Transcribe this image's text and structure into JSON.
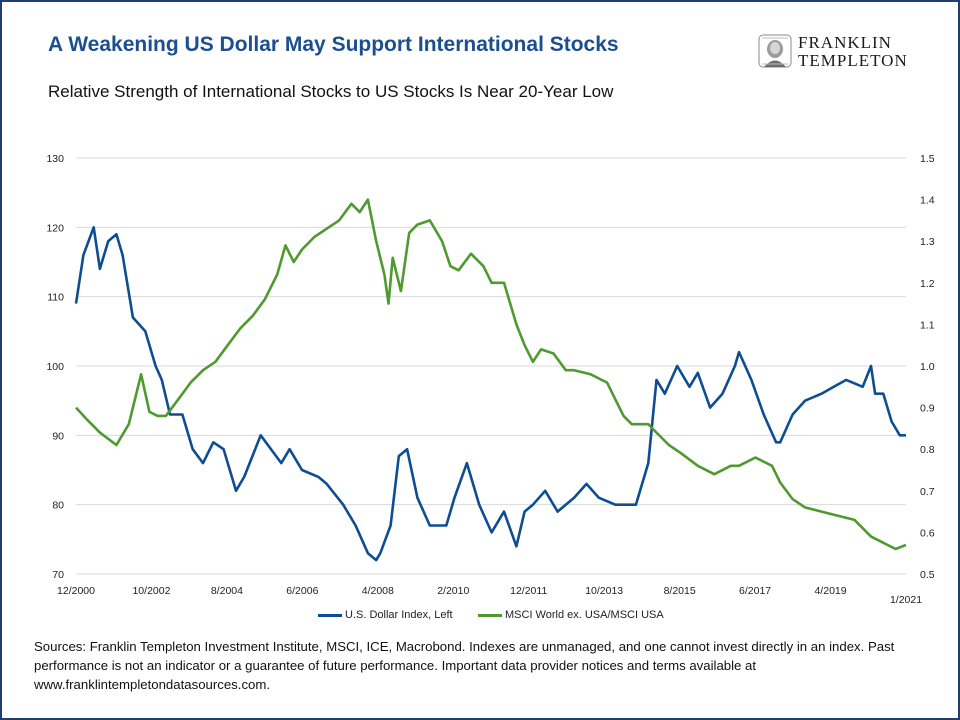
{
  "header": {
    "title": "A Weakening US Dollar May Support International Stocks",
    "subtitle": "Relative Strength of International Stocks to US Stocks Is Near 20-Year Low",
    "logo_line1": "FRANKLIN",
    "logo_line2": "TEMPLETON"
  },
  "footer": {
    "sources": "Sources: Franklin Templeton Investment Institute, MSCI, ICE, Macrobond. Indexes are unmanaged, and one cannot invest directly in an index. Past performance is not an indicator or a guarantee of future performance. Important data provider notices and terms available at www.franklintempletondatasources.com."
  },
  "colors": {
    "title": "#1b4f91",
    "dollar": "#0e4d92",
    "msci": "#4f9a2f",
    "grid": "#d9d9d9",
    "frame": "#1f3f73"
  },
  "chart_data": {
    "type": "line",
    "title": "Relative Strength of International Stocks to US Stocks Is Near 20-Year Low",
    "x_tick_labels": [
      "12/2000",
      "10/2002",
      "8/2004",
      "6/2006",
      "4/2008",
      "2/2010",
      "12/2011",
      "10/2013",
      "8/2015",
      "6/2017",
      "4/2019",
      "1/2021"
    ],
    "x_range": [
      2000.92,
      2021.05
    ],
    "y_left_ticks": [
      70,
      80,
      90,
      100,
      110,
      120,
      130
    ],
    "y_left_range": [
      70,
      130
    ],
    "y_right_ticks": [
      "0.5",
      "0.6",
      "0.7",
      "0.8",
      "0.9",
      "1.0",
      "1.1",
      "1.2",
      "1.3",
      "1.4",
      "1.5"
    ],
    "y_right_range": [
      0.5,
      1.5
    ],
    "grid": "horizontal",
    "legend_position": "bottom",
    "series": [
      {
        "name": "U.S. Dollar Index, Left",
        "axis": "left",
        "x": [
          2000.92,
          2001.1,
          2001.35,
          2001.5,
          2001.7,
          2001.9,
          2002.05,
          2002.3,
          2002.6,
          2002.85,
          2003.0,
          2003.2,
          2003.5,
          2003.75,
          2004.0,
          2004.25,
          2004.5,
          2004.8,
          2005.0,
          2005.4,
          2005.9,
          2006.1,
          2006.4,
          2006.8,
          2007.0,
          2007.4,
          2007.7,
          2008.0,
          2008.2,
          2008.3,
          2008.55,
          2008.75,
          2008.95,
          2009.2,
          2009.5,
          2009.9,
          2010.1,
          2010.4,
          2010.7,
          2011.0,
          2011.3,
          2011.6,
          2011.8,
          2012.0,
          2012.3,
          2012.6,
          2013.0,
          2013.3,
          2013.6,
          2014.0,
          2014.5,
          2014.8,
          2015.0,
          2015.2,
          2015.5,
          2015.8,
          2016.0,
          2016.3,
          2016.6,
          2016.9,
          2017.0,
          2017.3,
          2017.6,
          2017.9,
          2018.0,
          2018.3,
          2018.6,
          2019.0,
          2019.3,
          2019.6,
          2020.0,
          2020.2,
          2020.3,
          2020.5,
          2020.7,
          2020.9,
          2021.05
        ],
        "y": [
          109,
          116,
          120,
          114,
          118,
          119,
          116,
          107,
          105,
          100,
          98,
          93,
          93,
          88,
          86,
          89,
          88,
          82,
          84,
          90,
          86,
          88,
          85,
          84,
          83,
          80,
          77,
          73,
          72,
          73,
          77,
          87,
          88,
          81,
          77,
          77,
          81,
          86,
          80,
          76,
          79,
          74,
          79,
          80,
          82,
          79,
          81,
          83,
          81,
          80,
          80,
          86,
          98,
          96,
          100,
          97,
          99,
          94,
          96,
          100,
          102,
          98,
          93,
          89,
          89,
          93,
          95,
          96,
          97,
          98,
          97,
          100,
          96,
          96,
          92,
          90,
          90
        ]
      },
      {
        "name": "MSCI World ex. USA/MSCI USA",
        "axis": "right",
        "x": [
          2000.92,
          2001.2,
          2001.5,
          2001.9,
          2002.2,
          2002.5,
          2002.7,
          2002.9,
          2003.1,
          2003.4,
          2003.7,
          2004.0,
          2004.3,
          2004.6,
          2004.9,
          2005.2,
          2005.5,
          2005.8,
          2006.0,
          2006.2,
          2006.4,
          2006.7,
          2007.0,
          2007.3,
          2007.6,
          2007.8,
          2008.0,
          2008.2,
          2008.4,
          2008.5,
          2008.6,
          2008.8,
          2009.0,
          2009.2,
          2009.5,
          2009.8,
          2010.0,
          2010.2,
          2010.5,
          2010.8,
          2011.0,
          2011.3,
          2011.6,
          2011.8,
          2012.0,
          2012.2,
          2012.5,
          2012.8,
          2013.0,
          2013.4,
          2013.8,
          2014.0,
          2014.2,
          2014.4,
          2014.6,
          2014.8,
          2015.0,
          2015.3,
          2015.6,
          2016.0,
          2016.4,
          2016.8,
          2017.0,
          2017.4,
          2017.8,
          2018.0,
          2018.3,
          2018.6,
          2019.0,
          2019.4,
          2019.8,
          2020.0,
          2020.2,
          2020.4,
          2020.6,
          2020.8,
          2021.05
        ],
        "y": [
          0.9,
          0.87,
          0.84,
          0.81,
          0.86,
          0.98,
          0.89,
          0.88,
          0.88,
          0.92,
          0.96,
          0.99,
          1.01,
          1.05,
          1.09,
          1.12,
          1.16,
          1.22,
          1.29,
          1.25,
          1.28,
          1.31,
          1.33,
          1.35,
          1.39,
          1.37,
          1.4,
          1.3,
          1.22,
          1.15,
          1.26,
          1.18,
          1.32,
          1.34,
          1.35,
          1.3,
          1.24,
          1.23,
          1.27,
          1.24,
          1.2,
          1.2,
          1.1,
          1.05,
          1.01,
          1.04,
          1.03,
          0.99,
          0.99,
          0.98,
          0.96,
          0.92,
          0.88,
          0.86,
          0.86,
          0.86,
          0.84,
          0.81,
          0.79,
          0.76,
          0.74,
          0.76,
          0.76,
          0.78,
          0.76,
          0.72,
          0.68,
          0.66,
          0.65,
          0.64,
          0.63,
          0.61,
          0.59,
          0.58,
          0.57,
          0.56,
          0.57
        ]
      }
    ]
  }
}
